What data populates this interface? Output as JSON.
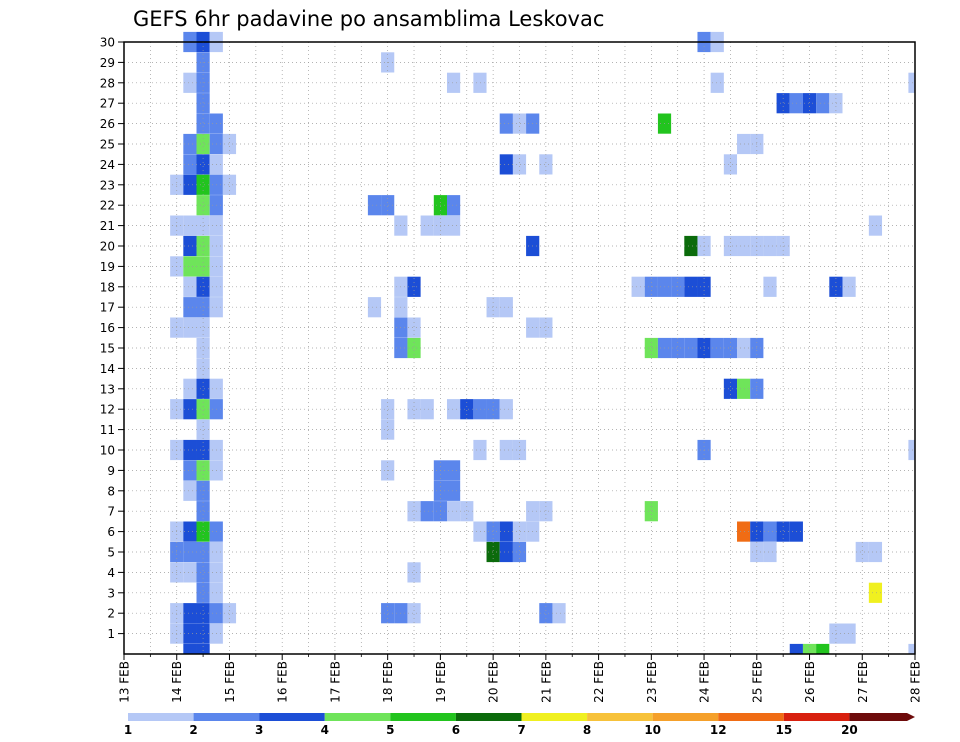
{
  "chart_data": {
    "type": "heatmap",
    "title": "GEFS 6hr padavine po ansamblima Leskovac",
    "x_tick_labels": [
      "13 FEB",
      "14 FEB",
      "15 FEB",
      "16 FEB",
      "17 FEB",
      "18 FEB",
      "19 FEB",
      "20 FEB",
      "21 FEB",
      "22 FEB",
      "23 FEB",
      "24 FEB",
      "25 FEB",
      "26 FEB",
      "27 FEB",
      "28 FEB"
    ],
    "y_tick_labels": [
      "1",
      "2",
      "3",
      "4",
      "5",
      "6",
      "7",
      "8",
      "9",
      "10",
      "11",
      "12",
      "13",
      "14",
      "15",
      "16",
      "17",
      "18",
      "19",
      "20",
      "21",
      "22",
      "23",
      "24",
      "25",
      "26",
      "27",
      "28",
      "29",
      "30"
    ],
    "xlim_days": [
      13,
      28
    ],
    "ylim_members": [
      0,
      30
    ],
    "time_step_hours": 6,
    "grid": true,
    "colorbar": {
      "labels": [
        "1",
        "2",
        "3",
        "4",
        "5",
        "6",
        "7",
        "8",
        "10",
        "12",
        "15",
        "20"
      ],
      "colors": [
        "#b5c8f6",
        "#5b86ec",
        "#1c4ed6",
        "#6fe45a",
        "#22c41e",
        "#0b6b0b",
        "#f0f020",
        "#f7c23a",
        "#f5a02a",
        "#f06c14",
        "#d8200e",
        "#6e0b0b"
      ]
    },
    "cells": [
      [
        14.25,
        30,
        2
      ],
      [
        14.5,
        30,
        3
      ],
      [
        14.75,
        30,
        1
      ],
      [
        24.0,
        30,
        2
      ],
      [
        24.25,
        30,
        1
      ],
      [
        14.5,
        29,
        2
      ],
      [
        18.0,
        29,
        1
      ],
      [
        14.25,
        28,
        1
      ],
      [
        14.5,
        28,
        2
      ],
      [
        19.25,
        28,
        1
      ],
      [
        19.75,
        28,
        1
      ],
      [
        24.25,
        28,
        1
      ],
      [
        28.0,
        28,
        1
      ],
      [
        14.5,
        27,
        2
      ],
      [
        25.5,
        27,
        3
      ],
      [
        25.75,
        27,
        2
      ],
      [
        26.0,
        27,
        3
      ],
      [
        26.25,
        27,
        2
      ],
      [
        26.5,
        27,
        1
      ],
      [
        14.5,
        26,
        2
      ],
      [
        14.75,
        26,
        2
      ],
      [
        20.25,
        26,
        2
      ],
      [
        20.5,
        26,
        1
      ],
      [
        20.75,
        26,
        2
      ],
      [
        23.25,
        26,
        5
      ],
      [
        14.25,
        25,
        2
      ],
      [
        14.5,
        25,
        4
      ],
      [
        14.75,
        25,
        2
      ],
      [
        15.0,
        25,
        1
      ],
      [
        24.75,
        25,
        1
      ],
      [
        25.0,
        25,
        1
      ],
      [
        14.25,
        24,
        2
      ],
      [
        14.5,
        24,
        3
      ],
      [
        14.75,
        24,
        1
      ],
      [
        20.25,
        24,
        3
      ],
      [
        20.5,
        24,
        1
      ],
      [
        21.0,
        24,
        1
      ],
      [
        24.5,
        24,
        1
      ],
      [
        14.0,
        23,
        1
      ],
      [
        14.25,
        23,
        3
      ],
      [
        14.5,
        23,
        5
      ],
      [
        14.75,
        23,
        2
      ],
      [
        15.0,
        23,
        1
      ],
      [
        14.5,
        22,
        4
      ],
      [
        14.75,
        22,
        2
      ],
      [
        17.75,
        22,
        2
      ],
      [
        18.0,
        22,
        2
      ],
      [
        19.0,
        22,
        5
      ],
      [
        19.25,
        22,
        2
      ],
      [
        14.0,
        21,
        1
      ],
      [
        14.25,
        21,
        1
      ],
      [
        14.5,
        21,
        1
      ],
      [
        14.75,
        21,
        1
      ],
      [
        18.25,
        21,
        1
      ],
      [
        18.75,
        21,
        1
      ],
      [
        19.0,
        21,
        1
      ],
      [
        19.25,
        21,
        1
      ],
      [
        27.25,
        21,
        1
      ],
      [
        14.25,
        20,
        3
      ],
      [
        14.5,
        20,
        4
      ],
      [
        14.75,
        20,
        1
      ],
      [
        20.75,
        20,
        3
      ],
      [
        23.75,
        20,
        6
      ],
      [
        24.0,
        20,
        1
      ],
      [
        24.5,
        20,
        1
      ],
      [
        24.75,
        20,
        1
      ],
      [
        25.0,
        20,
        1
      ],
      [
        25.25,
        20,
        1
      ],
      [
        25.5,
        20,
        1
      ],
      [
        14.0,
        19,
        1
      ],
      [
        14.25,
        19,
        4
      ],
      [
        14.5,
        19,
        4
      ],
      [
        14.75,
        19,
        1
      ],
      [
        14.25,
        18,
        1
      ],
      [
        14.5,
        18,
        3
      ],
      [
        14.75,
        18,
        1
      ],
      [
        18.25,
        18,
        1
      ],
      [
        18.5,
        18,
        3
      ],
      [
        22.75,
        18,
        1
      ],
      [
        23.0,
        18,
        2
      ],
      [
        23.25,
        18,
        2
      ],
      [
        23.5,
        18,
        2
      ],
      [
        23.75,
        18,
        3
      ],
      [
        24.0,
        18,
        3
      ],
      [
        25.25,
        18,
        1
      ],
      [
        26.5,
        18,
        3
      ],
      [
        26.75,
        18,
        1
      ],
      [
        14.25,
        17,
        2
      ],
      [
        14.5,
        17,
        2
      ],
      [
        14.75,
        17,
        1
      ],
      [
        17.75,
        17,
        1
      ],
      [
        18.25,
        17,
        1
      ],
      [
        20.0,
        17,
        1
      ],
      [
        20.25,
        17,
        1
      ],
      [
        14.0,
        16,
        1
      ],
      [
        14.25,
        16,
        1
      ],
      [
        14.5,
        16,
        1
      ],
      [
        18.25,
        16,
        2
      ],
      [
        18.5,
        16,
        1
      ],
      [
        20.75,
        16,
        1
      ],
      [
        21.0,
        16,
        1
      ],
      [
        14.5,
        15,
        1
      ],
      [
        18.25,
        15,
        2
      ],
      [
        18.5,
        15,
        4
      ],
      [
        23.0,
        15,
        4
      ],
      [
        23.25,
        15,
        2
      ],
      [
        23.5,
        15,
        2
      ],
      [
        23.75,
        15,
        2
      ],
      [
        24.0,
        15,
        3
      ],
      [
        24.25,
        15,
        2
      ],
      [
        24.5,
        15,
        2
      ],
      [
        24.75,
        15,
        1
      ],
      [
        25.0,
        15,
        2
      ],
      [
        14.5,
        14,
        1
      ],
      [
        14.25,
        13,
        1
      ],
      [
        14.5,
        13,
        3
      ],
      [
        14.75,
        13,
        1
      ],
      [
        24.5,
        13,
        3
      ],
      [
        24.75,
        13,
        4
      ],
      [
        25.0,
        13,
        2
      ],
      [
        14.0,
        12,
        1
      ],
      [
        14.25,
        12,
        3
      ],
      [
        14.5,
        12,
        4
      ],
      [
        14.75,
        12,
        2
      ],
      [
        18.0,
        12,
        1
      ],
      [
        18.5,
        12,
        1
      ],
      [
        18.75,
        12,
        1
      ],
      [
        19.25,
        12,
        1
      ],
      [
        19.5,
        12,
        3
      ],
      [
        19.75,
        12,
        2
      ],
      [
        20.0,
        12,
        2
      ],
      [
        20.25,
        12,
        1
      ],
      [
        14.5,
        11,
        1
      ],
      [
        18.0,
        11,
        1
      ],
      [
        14.0,
        10,
        1
      ],
      [
        14.25,
        10,
        3
      ],
      [
        14.5,
        10,
        3
      ],
      [
        14.75,
        10,
        1
      ],
      [
        19.75,
        10,
        1
      ],
      [
        20.25,
        10,
        1
      ],
      [
        20.5,
        10,
        1
      ],
      [
        24.0,
        10,
        2
      ],
      [
        28.0,
        10,
        1
      ],
      [
        14.25,
        9,
        2
      ],
      [
        14.5,
        9,
        4
      ],
      [
        14.75,
        9,
        1
      ],
      [
        18.0,
        9,
        1
      ],
      [
        19.0,
        9,
        2
      ],
      [
        19.25,
        9,
        2
      ],
      [
        14.25,
        8,
        1
      ],
      [
        14.5,
        8,
        2
      ],
      [
        19.0,
        8,
        2
      ],
      [
        19.25,
        8,
        2
      ],
      [
        14.5,
        7,
        2
      ],
      [
        18.5,
        7,
        1
      ],
      [
        18.75,
        7,
        2
      ],
      [
        19.0,
        7,
        2
      ],
      [
        19.25,
        7,
        1
      ],
      [
        19.5,
        7,
        1
      ],
      [
        20.75,
        7,
        1
      ],
      [
        21.0,
        7,
        1
      ],
      [
        23.0,
        7,
        4
      ],
      [
        14.0,
        6,
        1
      ],
      [
        14.25,
        6,
        3
      ],
      [
        14.5,
        6,
        5
      ],
      [
        14.75,
        6,
        2
      ],
      [
        19.75,
        6,
        1
      ],
      [
        20.0,
        6,
        2
      ],
      [
        20.25,
        6,
        3
      ],
      [
        20.5,
        6,
        1
      ],
      [
        20.75,
        6,
        1
      ],
      [
        24.75,
        6,
        10
      ],
      [
        25.0,
        6,
        3
      ],
      [
        25.25,
        6,
        2
      ],
      [
        25.5,
        6,
        3
      ],
      [
        25.75,
        6,
        3
      ],
      [
        14.0,
        5,
        2
      ],
      [
        14.25,
        5,
        2
      ],
      [
        14.5,
        5,
        2
      ],
      [
        14.75,
        5,
        1
      ],
      [
        20.0,
        5,
        6
      ],
      [
        20.25,
        5,
        3
      ],
      [
        20.5,
        5,
        2
      ],
      [
        25.0,
        5,
        1
      ],
      [
        25.25,
        5,
        1
      ],
      [
        27.0,
        5,
        1
      ],
      [
        27.25,
        5,
        1
      ],
      [
        14.0,
        4,
        1
      ],
      [
        14.25,
        4,
        1
      ],
      [
        14.5,
        4,
        2
      ],
      [
        14.75,
        4,
        1
      ],
      [
        18.5,
        4,
        1
      ],
      [
        14.5,
        3,
        2
      ],
      [
        14.75,
        3,
        1
      ],
      [
        27.25,
        3,
        7
      ],
      [
        14.0,
        2,
        1
      ],
      [
        14.25,
        2,
        3
      ],
      [
        14.5,
        2,
        3
      ],
      [
        14.75,
        2,
        2
      ],
      [
        15.0,
        2,
        1
      ],
      [
        18.0,
        2,
        2
      ],
      [
        18.25,
        2,
        2
      ],
      [
        18.5,
        2,
        1
      ],
      [
        21.0,
        2,
        2
      ],
      [
        21.25,
        2,
        1
      ],
      [
        14.0,
        1,
        1
      ],
      [
        14.25,
        1,
        3
      ],
      [
        14.5,
        1,
        3
      ],
      [
        14.75,
        1,
        1
      ],
      [
        26.5,
        1,
        1
      ],
      [
        26.75,
        1,
        1
      ],
      [
        14.25,
        0,
        3
      ],
      [
        14.5,
        0,
        3
      ],
      [
        25.75,
        0,
        3
      ],
      [
        26.0,
        0,
        4
      ],
      [
        26.25,
        0,
        5
      ],
      [
        28.0,
        0,
        1
      ]
    ]
  }
}
